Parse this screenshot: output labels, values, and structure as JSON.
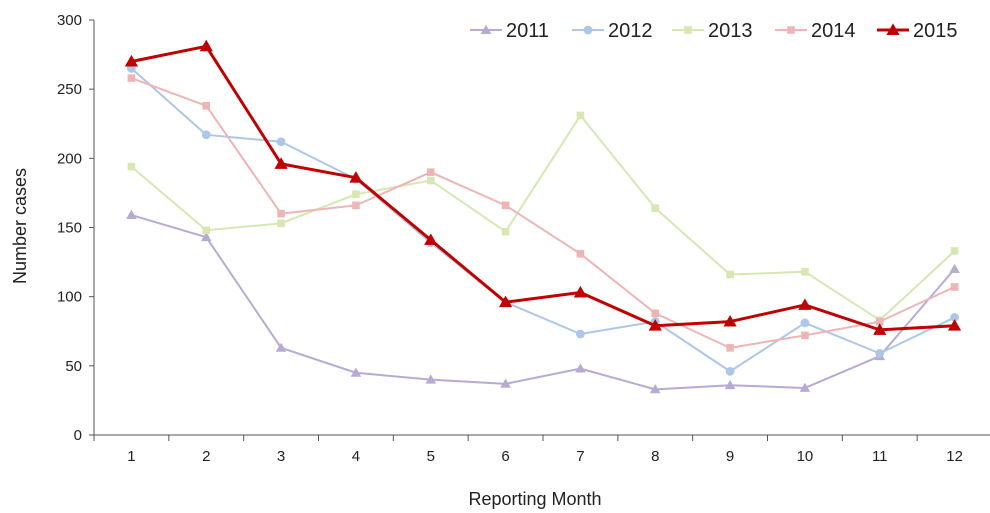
{
  "chart_data": {
    "type": "line",
    "title": "",
    "xlabel": "Reporting Month",
    "ylabel": "Number cases",
    "x": [
      1,
      2,
      3,
      4,
      5,
      6,
      7,
      8,
      9,
      10,
      11,
      12
    ],
    "x_tick_labels": [
      "1",
      "2",
      "3",
      "4",
      "5",
      "6",
      "7",
      "8",
      "9",
      "10",
      "11",
      "12"
    ],
    "ylim": [
      0,
      300
    ],
    "y_ticks": [
      0,
      50,
      100,
      150,
      200,
      250,
      300
    ],
    "y_tick_labels": [
      "0",
      "50",
      "100",
      "150",
      "200",
      "250",
      "300"
    ],
    "grid": false,
    "legend_position": "top-right",
    "series": [
      {
        "name": "2011",
        "color": "#b7abd3",
        "marker": "triangle",
        "emphasis": false,
        "values": [
          159,
          143,
          63,
          45,
          40,
          37,
          48,
          33,
          36,
          34,
          57,
          120
        ]
      },
      {
        "name": "2012",
        "color": "#aec7e8",
        "marker": "circle",
        "emphasis": false,
        "values": [
          265,
          217,
          212,
          185,
          139,
          96,
          73,
          82,
          46,
          81,
          59,
          85
        ]
      },
      {
        "name": "2013",
        "color": "#d7e7b4",
        "marker": "square",
        "emphasis": false,
        "values": [
          194,
          148,
          153,
          174,
          184,
          147,
          231,
          164,
          116,
          118,
          83,
          133
        ]
      },
      {
        "name": "2014",
        "color": "#eeb5b5",
        "marker": "square",
        "emphasis": false,
        "values": [
          258,
          238,
          160,
          166,
          190,
          166,
          131,
          88,
          63,
          72,
          82,
          107
        ]
      },
      {
        "name": "2015",
        "color": "#c00000",
        "marker": "triangle",
        "emphasis": true,
        "values": [
          270,
          281,
          196,
          186,
          141,
          96,
          103,
          79,
          82,
          94,
          76,
          79
        ]
      }
    ]
  }
}
